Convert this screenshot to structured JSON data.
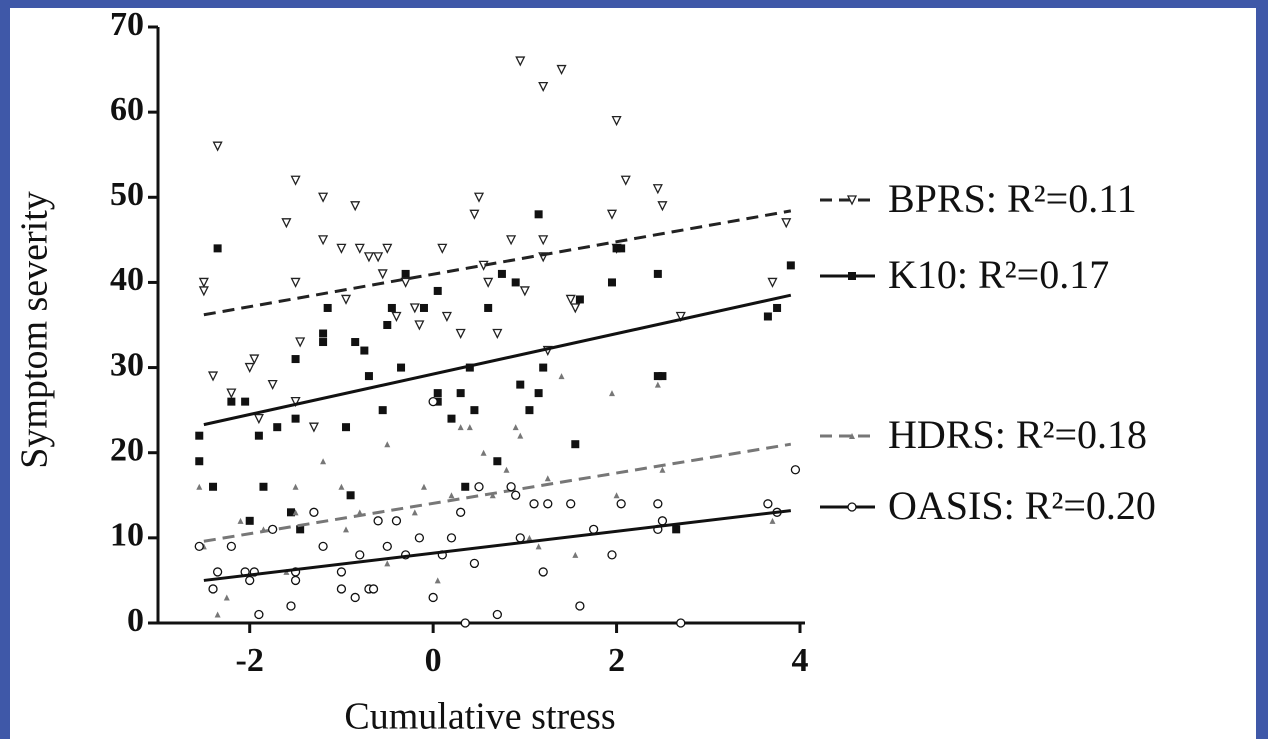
{
  "chart_data": {
    "type": "scatter",
    "xlabel": "Cumulative stress",
    "ylabel": "Symptom severity",
    "xlim": [
      -3,
      4
    ],
    "ylim": [
      0,
      70
    ],
    "xticks": [
      -2,
      0,
      2,
      4
    ],
    "yticks": [
      0,
      10,
      20,
      30,
      40,
      50,
      60,
      70
    ],
    "series": [
      {
        "name": "BPRS: R²=0.11",
        "color": "#222222",
        "marker": "triangle-down-open",
        "dashed": true,
        "x": [
          -2.5,
          -2.5,
          -2.35,
          -2.4,
          -2.2,
          -2.0,
          -1.95,
          -1.9,
          -1.75,
          -1.6,
          -1.5,
          -1.5,
          -1.45,
          -1.5,
          -1.3,
          -1.2,
          -1.2,
          -1.0,
          -0.95,
          -0.85,
          -0.8,
          -0.7,
          -0.6,
          -0.55,
          -0.5,
          -0.4,
          -0.3,
          -0.2,
          -0.15,
          0.1,
          0.15,
          0.3,
          0.45,
          0.5,
          0.55,
          0.6,
          0.7,
          0.85,
          0.95,
          1.0,
          1.2,
          1.2,
          1.2,
          1.25,
          1.4,
          1.5,
          1.55,
          1.95,
          2.0,
          2.1,
          2.0,
          2.45,
          2.5,
          2.7,
          3.7,
          3.85
        ],
        "values": [
          40,
          39,
          56,
          29,
          27,
          30,
          31,
          24,
          28,
          47,
          52,
          40,
          33,
          26,
          23,
          50,
          45,
          44,
          38,
          49,
          44,
          43,
          43,
          41,
          44,
          36,
          40,
          37,
          35,
          44,
          36,
          34,
          48,
          50,
          42,
          40,
          34,
          45,
          66,
          39,
          63,
          45,
          43,
          32,
          65,
          38,
          37,
          48,
          59,
          52,
          44,
          51,
          49,
          36,
          40,
          47
        ],
        "fit_x": [
          -2.5,
          3.9
        ],
        "fit_y": [
          36.2,
          48.4
        ]
      },
      {
        "name": "K10: R²=0.17",
        "color": "#111111",
        "marker": "square-filled",
        "dashed": false,
        "x": [
          -2.55,
          -2.55,
          -2.4,
          -2.35,
          -2.2,
          -2.05,
          -2.0,
          -1.9,
          -1.85,
          -1.7,
          -1.55,
          -1.5,
          -1.5,
          -1.45,
          -1.2,
          -1.2,
          -1.15,
          -0.95,
          -0.9,
          -0.85,
          -0.75,
          -0.7,
          -0.55,
          -0.5,
          -0.45,
          -0.35,
          -0.3,
          -0.1,
          0.05,
          0.05,
          0.05,
          0.2,
          0.3,
          0.35,
          0.4,
          0.45,
          0.6,
          0.7,
          0.75,
          0.9,
          0.95,
          1.05,
          1.15,
          1.15,
          1.2,
          1.55,
          1.6,
          1.95,
          2.0,
          2.05,
          2.45,
          2.5,
          2.45,
          2.65,
          3.65,
          3.75,
          3.9
        ],
        "values": [
          22,
          19,
          16,
          44,
          26,
          26,
          12,
          22,
          16,
          23,
          13,
          24,
          31,
          11,
          34,
          33,
          37,
          23,
          15,
          33,
          32,
          29,
          25,
          35,
          37,
          30,
          41,
          37,
          39,
          27,
          26,
          24,
          27,
          16,
          30,
          25,
          37,
          19,
          41,
          40,
          28,
          25,
          48,
          27,
          30,
          21,
          38,
          40,
          44,
          44,
          41,
          29,
          29,
          11,
          36,
          37,
          42
        ],
        "fit_x": [
          -2.5,
          3.9
        ],
        "fit_y": [
          23.3,
          38.5
        ]
      },
      {
        "name": "HDRS: R²=0.18",
        "color": "#777777",
        "marker": "triangle-up-filled",
        "dashed": true,
        "x": [
          -2.55,
          -2.5,
          -2.35,
          -2.25,
          -2.1,
          -1.85,
          -1.6,
          -1.5,
          -1.5,
          -1.3,
          -1.2,
          -1.0,
          -0.95,
          -0.8,
          -0.5,
          -0.5,
          -0.2,
          -0.1,
          0.05,
          0.2,
          0.3,
          0.4,
          0.55,
          0.65,
          0.8,
          0.9,
          0.95,
          1.05,
          1.15,
          1.25,
          1.4,
          1.55,
          1.95,
          2.0,
          2.45,
          2.5,
          3.7
        ],
        "values": [
          16,
          9,
          1,
          3,
          12,
          11,
          6,
          16,
          13,
          13,
          19,
          16,
          11,
          13,
          21,
          7,
          13,
          16,
          5,
          15,
          23,
          23,
          20,
          15,
          18,
          23,
          22,
          10,
          9,
          17,
          29,
          8,
          27,
          15,
          28,
          18,
          12
        ],
        "fit_x": [
          -2.5,
          3.9
        ],
        "fit_y": [
          9.6,
          21
        ]
      },
      {
        "name": "OASIS: R²=0.20",
        "color": "#111111",
        "marker": "circle-open",
        "dashed": false,
        "x": [
          -2.55,
          -2.35,
          -2.4,
          -2.2,
          -2.05,
          -2.0,
          -1.95,
          -1.9,
          -1.75,
          -1.55,
          -1.5,
          -1.5,
          -1.3,
          -1.2,
          -1.0,
          -1.0,
          -0.85,
          -0.8,
          -0.7,
          -0.65,
          -0.6,
          -0.5,
          -0.4,
          -0.3,
          -0.15,
          0.0,
          0.0,
          0.1,
          0.2,
          0.3,
          0.35,
          0.45,
          0.5,
          0.7,
          0.85,
          0.9,
          0.95,
          1.1,
          1.2,
          1.25,
          1.5,
          1.6,
          1.75,
          1.95,
          2.05,
          2.45,
          2.45,
          2.5,
          2.7,
          3.65,
          3.75,
          3.95
        ],
        "values": [
          9,
          6,
          4,
          9,
          6,
          5,
          6,
          1,
          11,
          2,
          6,
          5,
          13,
          9,
          6,
          4,
          3,
          8,
          4,
          4,
          12,
          9,
          12,
          8,
          10,
          3,
          26,
          8,
          10,
          13,
          0,
          7,
          16,
          1,
          16,
          15,
          10,
          14,
          6,
          14,
          14,
          2,
          11,
          8,
          14,
          14,
          11,
          12,
          0,
          14,
          13,
          18
        ],
        "fit_x": [
          -2.5,
          3.9
        ],
        "fit_y": [
          5,
          13.2
        ]
      }
    ]
  }
}
